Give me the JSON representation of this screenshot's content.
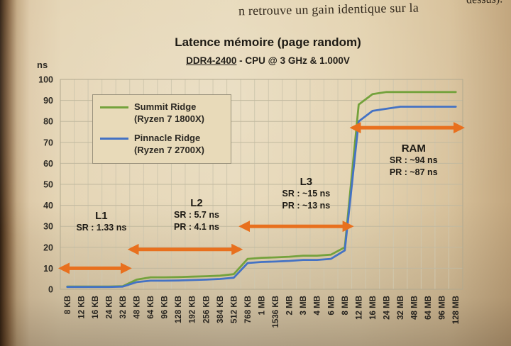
{
  "page": {
    "top_fragment": "dessus).",
    "top_line": "n retrouve un gain identique sur la"
  },
  "chart_data": {
    "type": "line",
    "title": "Latence mémoire (page random)",
    "subtitle_underlined": "DDR4-2400",
    "subtitle_rest": " - CPU @ 3 GHz & 1.000V",
    "ylabel": "ns",
    "ylim": [
      0,
      100
    ],
    "y_tick_step": 10,
    "grid": true,
    "legend_position": "top-left-inside",
    "arrow_color": "#E8701E",
    "categories": [
      "8 KB",
      "12 KB",
      "16 KB",
      "24 KB",
      "32 KB",
      "48 KB",
      "64 KB",
      "96 KB",
      "128 KB",
      "192 KB",
      "256 KB",
      "384 KB",
      "512 KB",
      "768 KB",
      "1 MB",
      "1536 KB",
      "2 MB",
      "3 MB",
      "4 MB",
      "6 MB",
      "8 MB",
      "12 MB",
      "16 MB",
      "24 MB",
      "32 MB",
      "48 MB",
      "64 MB",
      "96 MB",
      "128 MB"
    ],
    "series": [
      {
        "name": "Summit Ridge",
        "sub": "(Ryzen 7 1800X)",
        "color": "#74A23C",
        "values": [
          1.3,
          1.3,
          1.3,
          1.3,
          1.5,
          4.6,
          5.7,
          5.7,
          5.8,
          6.0,
          6.2,
          6.5,
          7.2,
          14.5,
          15,
          15.2,
          15.5,
          16,
          16,
          16.5,
          20,
          88,
          93,
          94,
          94,
          94,
          94,
          94,
          94
        ]
      },
      {
        "name": "Pinnacle Ridge",
        "sub": "(Ryzen 7 2700X)",
        "color": "#4472C4",
        "values": [
          1.1,
          1.1,
          1.1,
          1.1,
          1.3,
          3.4,
          4.1,
          4.1,
          4.2,
          4.4,
          4.6,
          4.9,
          5.5,
          12.5,
          13,
          13.2,
          13.5,
          14,
          14,
          14.5,
          18.5,
          80,
          85,
          86,
          87,
          87,
          87,
          87,
          87
        ]
      }
    ],
    "annotations": [
      {
        "label": "L1",
        "lines": [
          "SR : 1.33 ns"
        ],
        "arrow": {
          "from": "8 KB",
          "to": "32 KB",
          "ns": 10
        },
        "text_ns": 38,
        "dx": 9
      },
      {
        "label": "L2",
        "lines": [
          "SR : 5.7 ns",
          "PR : 4.1 ns"
        ],
        "arrow": {
          "from": "48 KB",
          "to": "512 KB",
          "ns": 19
        },
        "text_ns": 44,
        "dx": 16
      },
      {
        "label": "L3",
        "lines": [
          "SR : ~15 ns",
          "PR : ~13 ns"
        ],
        "arrow": {
          "from": "768 KB",
          "to": "8 MB",
          "ns": 30
        },
        "text_ns": 54,
        "dx": 14
      },
      {
        "label": "RAM",
        "lines": [
          "SR : ~94 ns",
          "PR : ~87 ns"
        ],
        "arrow": {
          "from": "12 MB",
          "to": "128 MB",
          "ns": 77
        },
        "text_ns": 70,
        "dx": 9
      }
    ]
  }
}
